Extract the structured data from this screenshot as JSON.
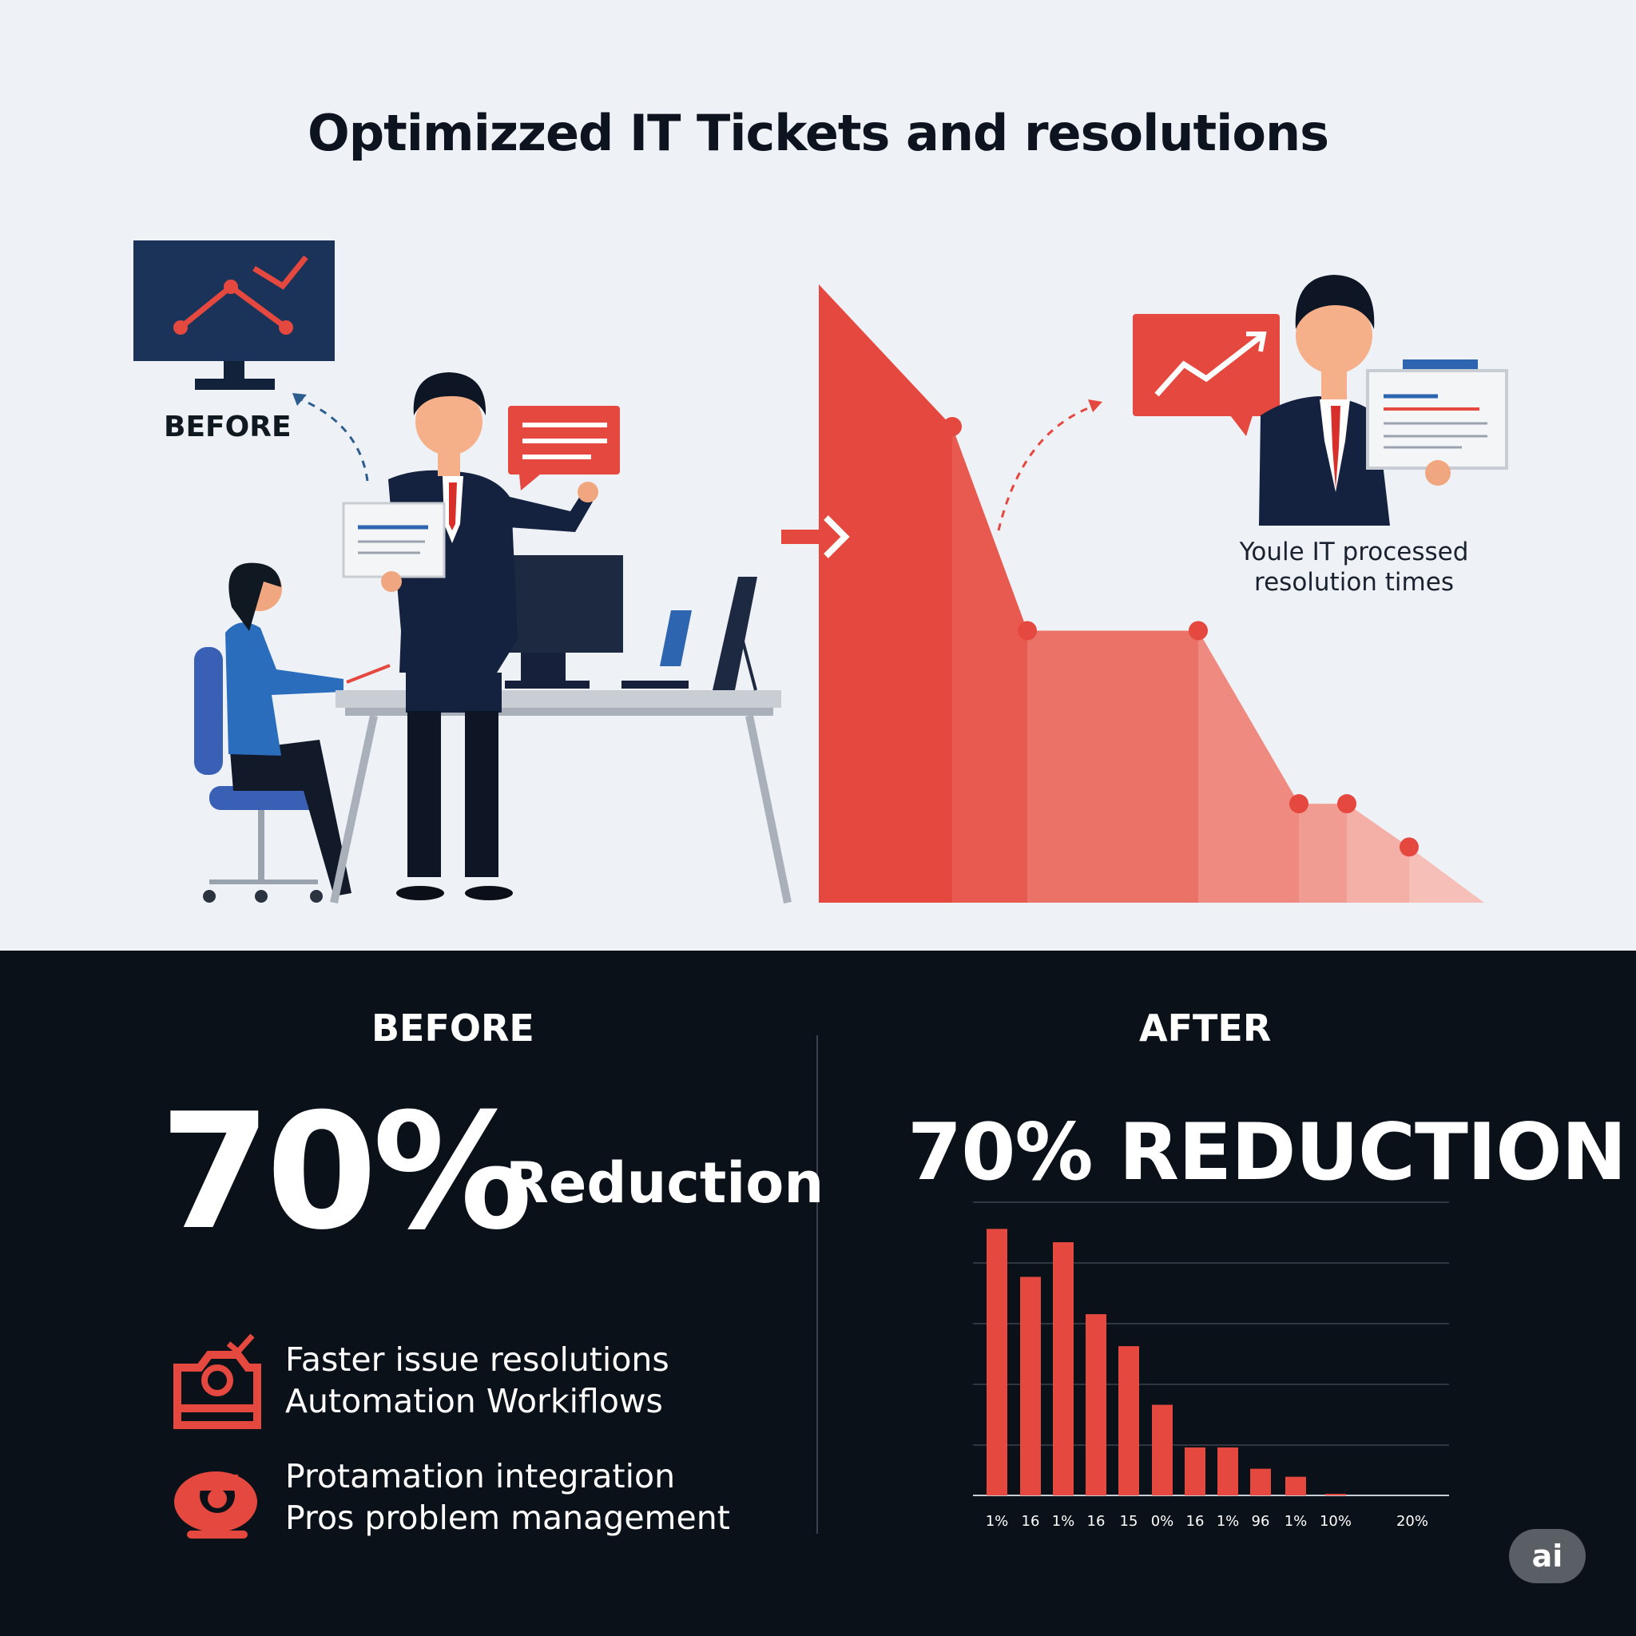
{
  "title": "Optimizzed IT Tickets and resolutions",
  "before_label": "BEFORE",
  "caption_line1": "Youle IT processed",
  "caption_line2": "resolution times",
  "bottom": {
    "before_heading": "BEFORE",
    "after_heading": "AFTER",
    "big_percent": "70%",
    "reduction_word": "Reduction",
    "after_headline": "70% REDUCTION",
    "features": [
      {
        "line1": "Faster issue resolutions",
        "line2": "Automation Workiflows"
      },
      {
        "line1": "Protamation integration",
        "line2": "Pros problem management"
      }
    ],
    "badge": "ai"
  },
  "colors": {
    "accent_red": "#e5483f",
    "navy": "#1b2a4a",
    "dark_bg": "#0b1119"
  },
  "chart_data": [
    {
      "type": "area",
      "description_role": "illustrative declining resolution-time curve (no axes)",
      "x": [
        0,
        1,
        2,
        3,
        4,
        5,
        6
      ],
      "values": [
        100,
        77,
        44,
        44,
        16,
        16,
        9
      ],
      "ylim": [
        0,
        100
      ]
    },
    {
      "type": "bar",
      "title": "70% REDUCTION",
      "categories": [
        "1%",
        "16",
        "1%",
        "16",
        "15",
        "0%",
        "16",
        "1%",
        "96",
        "1%",
        "10%",
        "20%"
      ],
      "values": [
        100,
        82,
        95,
        68,
        56,
        34,
        18,
        18,
        10,
        7,
        0.5,
        0
      ],
      "ylim": [
        0,
        110
      ],
      "grid": true
    }
  ]
}
